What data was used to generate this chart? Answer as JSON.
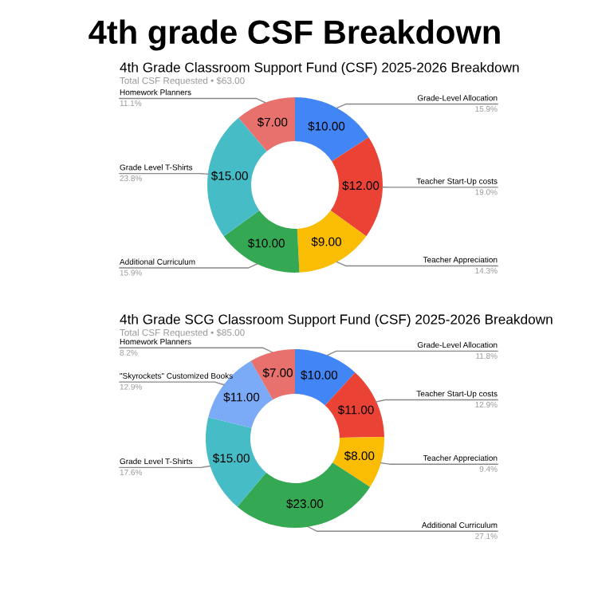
{
  "chart_data": [
    {
      "type": "other",
      "title": "4th grade CSF Breakdown"
    },
    {
      "type": "donut",
      "title": "4th Grade Classroom Support Fund (CSF) 2025-2026 Breakdown",
      "subtitle": "Total CSF Requested • $63.00",
      "categories": [
        "Grade-Level Allocation",
        "Teacher Start-Up costs",
        "Teacher Appreciation",
        "Additional Curriculum",
        "Grade Level T-Shirts",
        "Homework Planners"
      ],
      "values": [
        10,
        12,
        9,
        10,
        15,
        7
      ],
      "colors": [
        "#4285f4",
        "#ea4335",
        "#fbbc04",
        "#34a853",
        "#46bdc6",
        "#e8716d"
      ],
      "value_labels": [
        "$10.00",
        "$12.00",
        "$9.00",
        "$10.00",
        "$15.00",
        "$7.00"
      ],
      "annotations": [
        "15.9%",
        "19.0%",
        "14.3%",
        "15.9%",
        "23.8%",
        "11.1%"
      ],
      "legend": false
    },
    {
      "type": "donut",
      "title": "4th Grade SCG Classroom Support Fund (CSF) 2025-2026 Breakdown",
      "subtitle": "Total CSF Requested • $85.00",
      "categories": [
        "Grade-Level Allocation",
        "Teacher Start-Up costs",
        "Teacher Appreciation",
        "Additional Curriculum",
        "Grade Level T-Shirts",
        "\"Skyrockets\" Customized Books",
        "Homework Planners"
      ],
      "values": [
        10,
        11,
        8,
        23,
        15,
        11,
        7
      ],
      "colors": [
        "#4285f4",
        "#ea4335",
        "#fbbc04",
        "#34a853",
        "#46bdc6",
        "#7baaf7",
        "#e8716d"
      ],
      "value_labels": [
        "$10.00",
        "$11.00",
        "$8.00",
        "$23.00",
        "$15.00",
        "$11.00",
        "$7.00"
      ],
      "annotations": [
        "11.8%",
        "12.9%",
        "9.4%",
        "27.1%",
        "17.6%",
        "12.9%",
        "8.2%"
      ],
      "legend": false
    }
  ]
}
